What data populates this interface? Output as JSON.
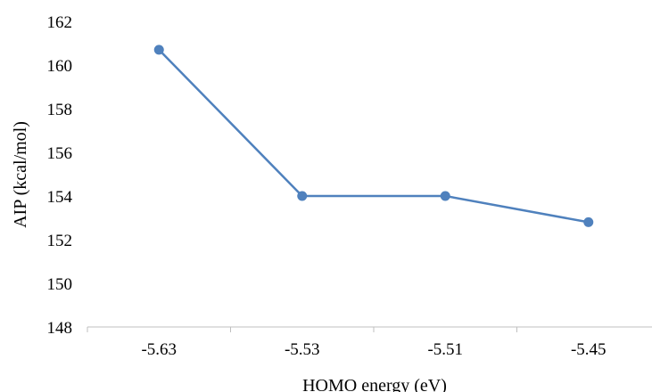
{
  "chart_data": {
    "type": "line",
    "title": "",
    "xlabel": "HOMO energy (eV)",
    "ylabel": "AIP (kcal/mol)",
    "categories": [
      "-5.63",
      "-5.53",
      "-5.51",
      "-5.45"
    ],
    "series": [
      {
        "values": [
          160.7,
          154.0,
          154.0,
          152.8
        ],
        "color": "#4f81bd"
      }
    ],
    "ylim": [
      148,
      162
    ],
    "yticks": [
      "148",
      "150",
      "152",
      "154",
      "156",
      "158",
      "160",
      "162"
    ],
    "grid": false,
    "legend": "none"
  }
}
